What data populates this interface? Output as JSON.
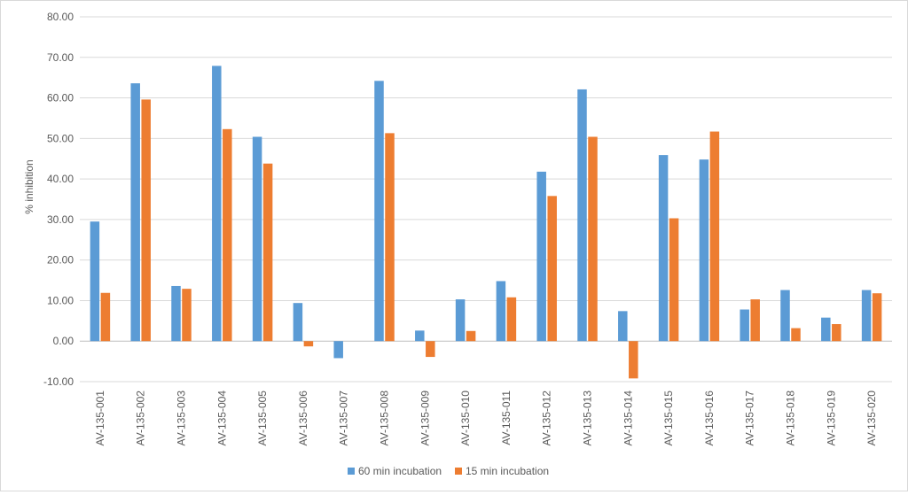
{
  "chart_data": {
    "type": "bar",
    "title": "",
    "xlabel": "",
    "ylabel": "% inhibition",
    "ylim": [
      -10,
      80
    ],
    "ytick_step": 10,
    "ytick_decimals": 2,
    "grid": true,
    "legend_position": "bottom",
    "categories": [
      "AV-135-001",
      "AV-135-002",
      "AV-135-003",
      "AV-135-004",
      "AV-135-005",
      "AV-135-006",
      "AV-135-007",
      "AV-135-008",
      "AV-135-009",
      "AV-135-010",
      "AV-135-011",
      "AV-135-012",
      "AV-135-013",
      "AV-135-014",
      "AV-135-015",
      "AV-135-016",
      "AV-135-017",
      "AV-135-018",
      "AV-135-019",
      "AV-135-020"
    ],
    "series": [
      {
        "name": "60 min incubation",
        "color": "#5B9BD5",
        "values": [
          29.5,
          63.6,
          13.6,
          67.9,
          50.4,
          9.4,
          -4.2,
          64.2,
          2.6,
          10.3,
          14.8,
          41.8,
          62.1,
          7.4,
          45.9,
          44.8,
          7.8,
          12.6,
          5.8,
          12.6
        ]
      },
      {
        "name": "15 min incubation",
        "color": "#ED7D31",
        "values": [
          11.9,
          59.6,
          12.9,
          52.3,
          43.8,
          -1.3,
          0,
          51.3,
          -3.9,
          2.5,
          10.8,
          35.8,
          50.4,
          -9.2,
          30.3,
          51.7,
          10.3,
          3.2,
          4.2,
          11.8
        ]
      }
    ]
  }
}
